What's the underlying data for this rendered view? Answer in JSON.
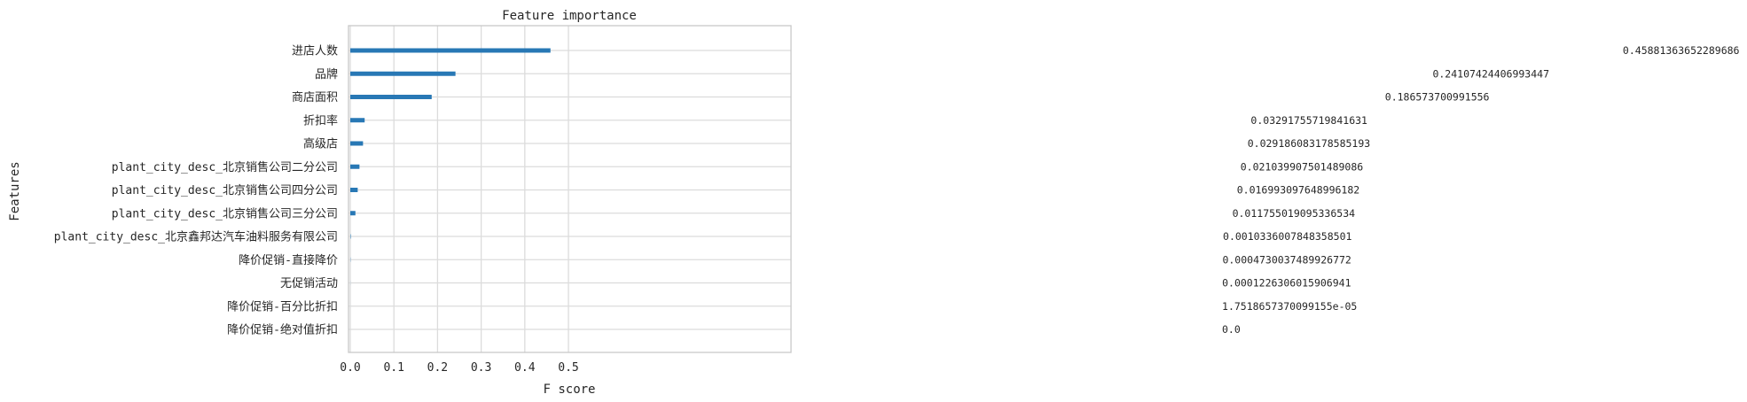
{
  "chart_data": {
    "type": "bar",
    "orientation": "horizontal",
    "title": "Feature importance",
    "xlabel": "F score",
    "ylabel": "Features",
    "xlim": [
      0,
      0.505
    ],
    "xticks": [
      "0.0",
      "0.1",
      "0.2",
      "0.3",
      "0.4",
      "0.5"
    ],
    "grid": true,
    "bar_color": "#2878b5",
    "categories": [
      "进店人数",
      "品牌",
      "商店面积",
      "折扣率",
      "高级店",
      "plant_city_desc_北京销售公司二分公司",
      "plant_city_desc_北京销售公司四分公司",
      "plant_city_desc_北京销售公司三分公司",
      "plant_city_desc_北京鑫邦达汽车油料服务有限公司",
      "降价促销-直接降价",
      "无促销活动",
      "降价促销-百分比折扣",
      "降价促销-绝对值折扣"
    ],
    "values": [
      0.45881363652289686,
      0.24107424406993447,
      0.186573700991556,
      0.03291755719841631,
      0.029186083178585193,
      0.021039907501489086,
      0.016993097648996182,
      0.011755019095336534,
      0.0010336007848358501,
      0.0004730037489926772,
      0.0001226306015906941,
      1.7518657370099155e-05,
      0.0
    ],
    "value_labels": [
      "0.45881363652289686",
      "0.24107424406993447",
      "0.186573700991556",
      "0.03291755719841631",
      "0.029186083178585193",
      "0.021039907501489086",
      "0.016993097648996182",
      "0.011755019095336534",
      "0.0010336007848358501",
      "0.0004730037489926772",
      "0.0001226306015906941",
      "1.7518657370099155e-05",
      "0.0"
    ]
  }
}
